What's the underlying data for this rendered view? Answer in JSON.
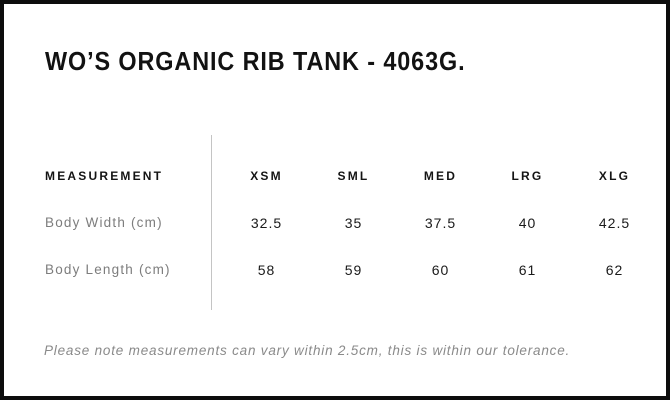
{
  "title": "WO’S ORGANIC RIB TANK - 4063G.",
  "table": {
    "measurement_header": "MEASUREMENT",
    "columns": [
      "XSM",
      "SML",
      "MED",
      "LRG",
      "XLG"
    ],
    "rows": [
      {
        "label": "Body Width (cm)",
        "values": [
          "32.5",
          "35",
          "37.5",
          "40",
          "42.5"
        ]
      },
      {
        "label": "Body Length (cm)",
        "values": [
          "58",
          "59",
          "60",
          "61",
          "62"
        ]
      }
    ]
  },
  "note": "Please note measurements can vary within 2.5cm, this is within our tolerance.",
  "colors": {
    "border": "#0d0d0d",
    "heading_text": "#121212",
    "value_text": "#1a1a1a",
    "row_label_gray": "#7d7d7d",
    "note_gray": "#8a8a8a",
    "divider_gray": "#c4c4c4",
    "background": "#ffffff"
  },
  "chart_data": {
    "type": "table",
    "title": "WO’S ORGANIC RIB TANK - 4063G.",
    "columns": [
      "MEASUREMENT",
      "XSM",
      "SML",
      "MED",
      "LRG",
      "XLG"
    ],
    "rows": [
      [
        "Body Width (cm)",
        32.5,
        35,
        37.5,
        40,
        42.5
      ],
      [
        "Body Length (cm)",
        58,
        59,
        60,
        61,
        62
      ]
    ],
    "footnote": "Please note measurements can vary within 2.5cm, this is within our tolerance.",
    "layout": {
      "divider_between_label_and_sizes": true,
      "gridlines": "none"
    }
  }
}
